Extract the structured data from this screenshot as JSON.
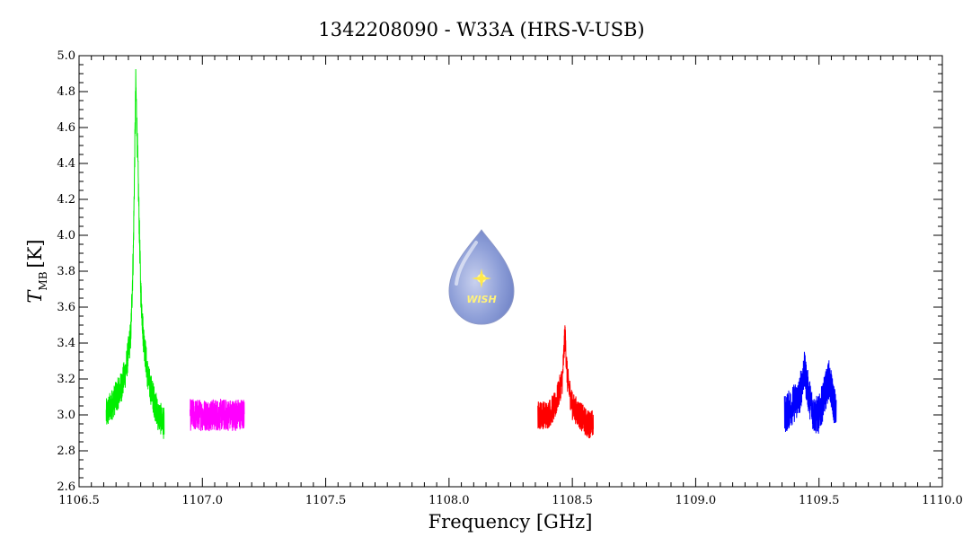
{
  "chart_data": {
    "type": "line",
    "title": "1342208090 - W33A (HRS-V-USB)",
    "xlabel": "Frequency [GHz]",
    "ylabel": {
      "symbol": "T",
      "subscript": "MB",
      "unit": "[K]"
    },
    "xlim": [
      1106.5,
      1110.0
    ],
    "ylim": [
      2.6,
      5.0
    ],
    "x_ticks": [
      "1106.5",
      "1107.0",
      "1107.5",
      "1108.0",
      "1108.5",
      "1109.0",
      "1109.5",
      "1110.0"
    ],
    "y_ticks": [
      "2.6",
      "2.8",
      "3.0",
      "3.2",
      "3.4",
      "3.6",
      "3.8",
      "4.0",
      "4.2",
      "4.4",
      "4.6",
      "4.8",
      "5.0"
    ],
    "grid": false,
    "logo": {
      "text": "WISH"
    },
    "series": [
      {
        "color": "#00ee00",
        "x": [
          1106.61,
          1106.63,
          1106.65,
          1106.67,
          1106.69,
          1106.71,
          1106.72,
          1106.73,
          1106.74,
          1106.75,
          1106.76,
          1106.78,
          1106.8,
          1106.82,
          1106.845
        ],
        "y": [
          3.0,
          3.05,
          3.1,
          3.15,
          3.25,
          3.45,
          3.9,
          4.85,
          4.3,
          3.7,
          3.45,
          3.2,
          3.1,
          3.0,
          2.95
        ],
        "noise": 0.09
      },
      {
        "color": "#ff00ff",
        "x": [
          1106.95,
          1107.0,
          1107.05,
          1107.1,
          1107.17
        ],
        "y": [
          3.0,
          3.0,
          3.0,
          3.0,
          3.0
        ],
        "noise": 0.09
      },
      {
        "color": "#ff0000",
        "x": [
          1108.36,
          1108.4,
          1108.43,
          1108.46,
          1108.47,
          1108.48,
          1108.5,
          1108.53,
          1108.56,
          1108.585
        ],
        "y": [
          3.0,
          3.0,
          3.05,
          3.2,
          3.45,
          3.2,
          3.05,
          3.0,
          2.95,
          2.95
        ],
        "noise": 0.08
      },
      {
        "color": "#0000ff",
        "x": [
          1109.36,
          1109.39,
          1109.42,
          1109.44,
          1109.46,
          1109.48,
          1109.5,
          1109.52,
          1109.54,
          1109.57
        ],
        "y": [
          3.0,
          3.05,
          3.1,
          3.25,
          3.1,
          3.0,
          3.0,
          3.1,
          3.2,
          3.0
        ],
        "noise": 0.11
      }
    ]
  }
}
